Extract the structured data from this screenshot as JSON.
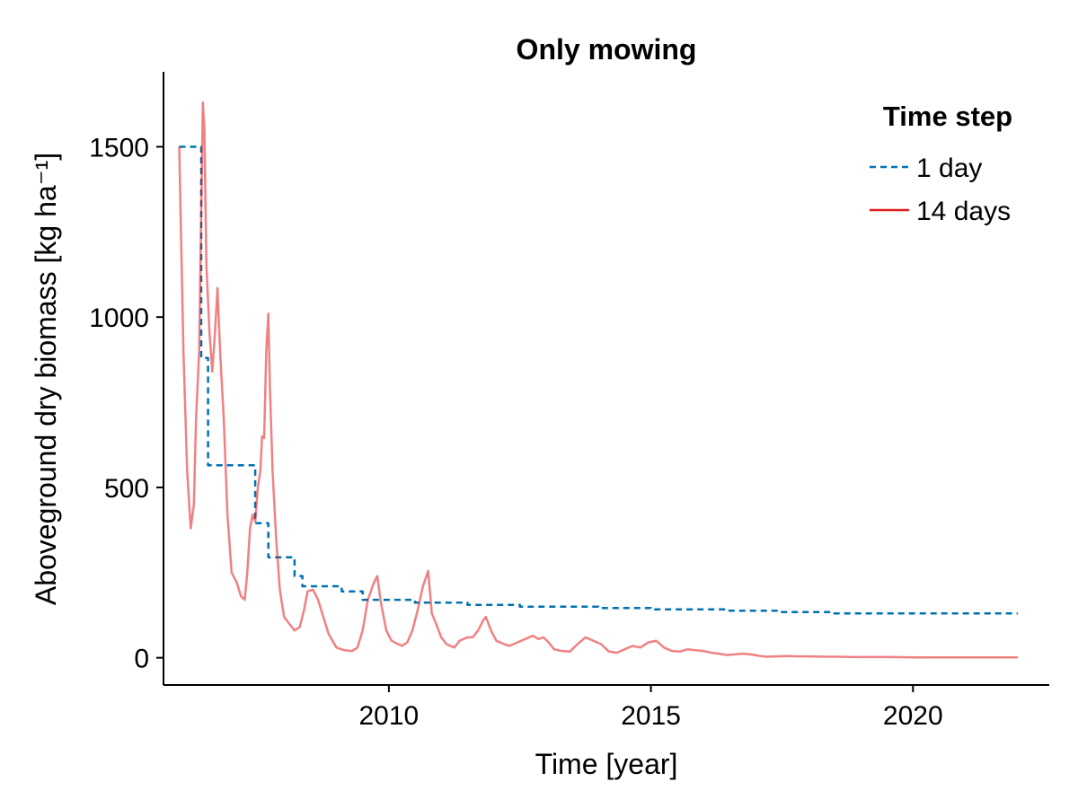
{
  "chart_data": {
    "type": "line",
    "title": "Only mowing",
    "xlabel": "Time [year]",
    "ylabel": "Aboveground dry biomass [kg ha⁻¹]",
    "xlim": [
      2006.0,
      2022.0
    ],
    "ylim": [
      -80,
      1720
    ],
    "xticks": [
      2010,
      2015,
      2020
    ],
    "yticks": [
      0,
      500,
      1000,
      1500
    ],
    "grid": false,
    "legend": {
      "title": "Time step",
      "position": "top-right"
    },
    "series": [
      {
        "name": "1 day",
        "color": "#0072b2",
        "style": "dashed",
        "points": [
          [
            2006.0,
            1500
          ],
          [
            2006.42,
            1500
          ],
          [
            2006.42,
            880
          ],
          [
            2006.55,
            880
          ],
          [
            2006.55,
            565
          ],
          [
            2007.45,
            565
          ],
          [
            2007.45,
            395
          ],
          [
            2007.7,
            395
          ],
          [
            2007.7,
            295
          ],
          [
            2008.2,
            295
          ],
          [
            2008.2,
            240
          ],
          [
            2008.35,
            240
          ],
          [
            2008.35,
            210
          ],
          [
            2009.1,
            210
          ],
          [
            2009.1,
            195
          ],
          [
            2009.5,
            195
          ],
          [
            2009.5,
            170
          ],
          [
            2010.5,
            170
          ],
          [
            2010.5,
            162
          ],
          [
            2011.5,
            162
          ],
          [
            2011.5,
            155
          ],
          [
            2012.5,
            155
          ],
          [
            2012.5,
            150
          ],
          [
            2014.0,
            150
          ],
          [
            2014.0,
            146
          ],
          [
            2015.0,
            146
          ],
          [
            2015.0,
            142
          ],
          [
            2016.5,
            142
          ],
          [
            2016.5,
            138
          ],
          [
            2017.5,
            138
          ],
          [
            2017.5,
            134
          ],
          [
            2018.5,
            134
          ],
          [
            2018.5,
            130
          ],
          [
            2022.0,
            130
          ]
        ]
      },
      {
        "name": "14 days",
        "color": "#e31a1c",
        "style": "solid",
        "points": [
          [
            2006.0,
            1500
          ],
          [
            2006.08,
            900
          ],
          [
            2006.15,
            550
          ],
          [
            2006.22,
            380
          ],
          [
            2006.28,
            450
          ],
          [
            2006.32,
            700
          ],
          [
            2006.38,
            900
          ],
          [
            2006.42,
            1300
          ],
          [
            2006.45,
            1630
          ],
          [
            2006.48,
            1550
          ],
          [
            2006.52,
            1150
          ],
          [
            2006.58,
            950
          ],
          [
            2006.63,
            840
          ],
          [
            2006.68,
            950
          ],
          [
            2006.73,
            1085
          ],
          [
            2006.78,
            900
          ],
          [
            2006.85,
            700
          ],
          [
            2006.92,
            420
          ],
          [
            2007.0,
            250
          ],
          [
            2007.1,
            220
          ],
          [
            2007.18,
            180
          ],
          [
            2007.25,
            170
          ],
          [
            2007.3,
            250
          ],
          [
            2007.35,
            380
          ],
          [
            2007.4,
            420
          ],
          [
            2007.45,
            400
          ],
          [
            2007.5,
            500
          ],
          [
            2007.55,
            550
          ],
          [
            2007.58,
            650
          ],
          [
            2007.62,
            645
          ],
          [
            2007.66,
            900
          ],
          [
            2007.7,
            1010
          ],
          [
            2007.73,
            800
          ],
          [
            2007.78,
            550
          ],
          [
            2007.85,
            350
          ],
          [
            2007.92,
            200
          ],
          [
            2008.0,
            120
          ],
          [
            2008.1,
            100
          ],
          [
            2008.2,
            80
          ],
          [
            2008.3,
            90
          ],
          [
            2008.38,
            140
          ],
          [
            2008.45,
            195
          ],
          [
            2008.55,
            200
          ],
          [
            2008.65,
            170
          ],
          [
            2008.75,
            120
          ],
          [
            2008.85,
            70
          ],
          [
            2009.0,
            30
          ],
          [
            2009.15,
            22
          ],
          [
            2009.3,
            20
          ],
          [
            2009.4,
            30
          ],
          [
            2009.5,
            80
          ],
          [
            2009.6,
            170
          ],
          [
            2009.7,
            215
          ],
          [
            2009.78,
            240
          ],
          [
            2009.85,
            160
          ],
          [
            2009.95,
            80
          ],
          [
            2010.05,
            50
          ],
          [
            2010.15,
            42
          ],
          [
            2010.25,
            35
          ],
          [
            2010.35,
            45
          ],
          [
            2010.45,
            80
          ],
          [
            2010.55,
            140
          ],
          [
            2010.65,
            210
          ],
          [
            2010.75,
            255
          ],
          [
            2010.82,
            130
          ],
          [
            2010.9,
            100
          ],
          [
            2011.0,
            60
          ],
          [
            2011.1,
            40
          ],
          [
            2011.25,
            30
          ],
          [
            2011.35,
            50
          ],
          [
            2011.5,
            60
          ],
          [
            2011.6,
            60
          ],
          [
            2011.7,
            80
          ],
          [
            2011.8,
            110
          ],
          [
            2011.85,
            120
          ],
          [
            2011.95,
            80
          ],
          [
            2012.05,
            50
          ],
          [
            2012.2,
            40
          ],
          [
            2012.3,
            35
          ],
          [
            2012.45,
            45
          ],
          [
            2012.6,
            55
          ],
          [
            2012.75,
            65
          ],
          [
            2012.85,
            55
          ],
          [
            2012.95,
            60
          ],
          [
            2013.05,
            45
          ],
          [
            2013.15,
            25
          ],
          [
            2013.3,
            20
          ],
          [
            2013.45,
            18
          ],
          [
            2013.6,
            40
          ],
          [
            2013.75,
            60
          ],
          [
            2013.9,
            50
          ],
          [
            2014.05,
            40
          ],
          [
            2014.2,
            18
          ],
          [
            2014.35,
            15
          ],
          [
            2014.5,
            25
          ],
          [
            2014.65,
            35
          ],
          [
            2014.8,
            30
          ],
          [
            2014.95,
            45
          ],
          [
            2015.1,
            50
          ],
          [
            2015.25,
            30
          ],
          [
            2015.4,
            20
          ],
          [
            2015.55,
            18
          ],
          [
            2015.7,
            25
          ],
          [
            2015.85,
            22
          ],
          [
            2016.0,
            20
          ],
          [
            2016.15,
            15
          ],
          [
            2016.3,
            12
          ],
          [
            2016.45,
            8
          ],
          [
            2016.6,
            10
          ],
          [
            2016.75,
            12
          ],
          [
            2016.9,
            10
          ],
          [
            2017.05,
            6
          ],
          [
            2017.2,
            3
          ],
          [
            2017.4,
            4
          ],
          [
            2017.6,
            5
          ],
          [
            2017.8,
            4
          ],
          [
            2018.0,
            4
          ],
          [
            2018.3,
            3
          ],
          [
            2018.6,
            3
          ],
          [
            2018.9,
            2
          ],
          [
            2019.2,
            2
          ],
          [
            2019.6,
            2
          ],
          [
            2020.0,
            1
          ],
          [
            2020.5,
            1
          ],
          [
            2021.0,
            1
          ],
          [
            2021.5,
            1
          ],
          [
            2022.0,
            1
          ]
        ]
      }
    ]
  }
}
